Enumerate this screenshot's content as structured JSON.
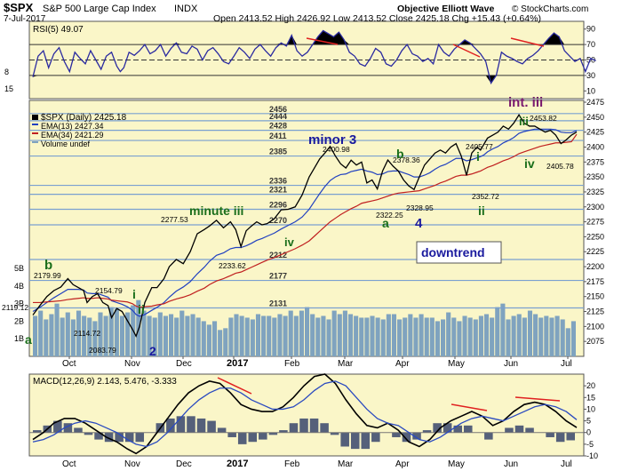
{
  "header": {
    "symbol": "$SPX",
    "name": "S&P 500 Large Cap Index",
    "exchange": "INDX",
    "date": "7-Jul-2017",
    "ohlc": "Open 2413.52  High 2426.92  Low 2413.52  Close 2425.18  Chg +15.43 (+0.64%)",
    "source": "Objective Elliott Wave",
    "copyright": "© StockCharts.com"
  },
  "colors": {
    "panel_bg": "#faf6c8",
    "rsi_fill": "#000000",
    "price_line": "#000000",
    "ema13": "#2040c0",
    "ema34": "#c02020",
    "volume": "#7fa3bf",
    "level_line": "#7aa0d0",
    "wave_green": "#1a6e1a",
    "wave_blue": "#1a1a9e",
    "wave_purple": "#7a1a6e",
    "divergence": "#e02020"
  },
  "chart_data": [
    {
      "type": "line",
      "panel": "rsi",
      "title": "RSI(5) 49.07",
      "ylim": [
        0,
        100
      ],
      "y_ticks": [
        10,
        30,
        50,
        70,
        90
      ],
      "levels": [
        30,
        70
      ],
      "x": [
        0,
        6,
        12,
        18,
        24,
        30,
        36,
        42,
        48,
        54,
        60,
        66,
        72,
        78,
        84,
        90,
        96,
        100,
        104,
        110,
        116,
        122,
        128,
        134,
        140,
        146,
        152,
        158,
        164,
        170,
        176,
        182,
        188,
        194,
        200,
        206,
        212,
        218,
        224,
        230,
        236,
        242,
        248,
        254,
        260,
        266,
        272,
        278,
        284,
        290,
        296,
        302,
        308,
        314,
        320,
        326,
        332,
        338,
        344,
        350,
        356,
        362,
        368,
        374,
        380,
        386,
        392,
        398,
        404,
        410,
        416,
        422,
        428,
        434,
        440,
        446,
        452,
        458,
        464,
        470,
        476,
        482,
        488,
        494,
        500,
        506,
        512,
        518,
        524,
        530,
        536,
        542,
        548,
        554,
        560,
        566,
        572,
        578,
        584,
        590,
        596,
        602,
        608,
        614,
        620,
        626,
        632,
        638,
        644
      ],
      "values": [
        28,
        55,
        62,
        40,
        58,
        66,
        48,
        35,
        60,
        52,
        45,
        62,
        50,
        38,
        55,
        60,
        42,
        35,
        40,
        60,
        56,
        62,
        70,
        58,
        62,
        70,
        55,
        65,
        72,
        60,
        58,
        68,
        64,
        50,
        62,
        66,
        58,
        48,
        45,
        55,
        66,
        60,
        52,
        64,
        70,
        62,
        55,
        66,
        72,
        68,
        82,
        62,
        55,
        60,
        70,
        80,
        88,
        84,
        80,
        86,
        76,
        60,
        55,
        45,
        42,
        52,
        65,
        60,
        45,
        42,
        50,
        62,
        70,
        58,
        55,
        48,
        52,
        45,
        70,
        60,
        55,
        64,
        70,
        76,
        72,
        65,
        58,
        48,
        20,
        30,
        60,
        55,
        52,
        48,
        45,
        52,
        56,
        62,
        70,
        78,
        85,
        80,
        62,
        55,
        48,
        52,
        35,
        52,
        49.07
      ],
      "annotations": [
        "15",
        "8"
      ]
    },
    {
      "type": "line",
      "panel": "price",
      "title": "$SPX (Daily) 2425.18",
      "ylim": [
        2050,
        2478
      ],
      "y_ticks": [
        2075,
        2100,
        2125,
        2150,
        2175,
        2200,
        2225,
        2250,
        2275,
        2300,
        2325,
        2350,
        2375,
        2400,
        2425,
        2450,
        2475
      ],
      "x_ticks": [
        "Oct",
        "Nov",
        "Dec",
        "2017",
        "Feb",
        "Mar",
        "Apr",
        "May",
        "Jun",
        "Jul"
      ],
      "x": [
        0,
        8,
        16,
        24,
        32,
        40,
        46,
        52,
        58,
        62,
        68,
        74,
        80,
        86,
        90,
        96,
        102,
        108,
        114,
        118,
        122,
        128,
        136,
        142,
        150,
        156,
        164,
        172,
        180,
        188,
        196,
        202,
        210,
        218,
        226,
        232,
        238,
        244,
        250,
        256,
        262,
        268,
        276,
        284,
        292,
        300,
        308,
        316,
        322,
        328,
        334,
        340,
        346,
        352,
        358,
        364,
        370,
        376,
        382,
        388,
        394,
        400,
        406,
        412,
        418,
        424,
        430,
        436,
        442,
        448,
        454,
        460,
        466,
        472,
        478,
        484,
        490,
        496,
        502,
        508,
        512,
        516,
        520,
        526,
        532,
        538,
        544,
        550,
        556,
        562,
        568,
        574,
        580,
        586,
        592,
        598,
        604,
        610,
        616,
        622
      ],
      "values": [
        2119.12,
        2135,
        2150,
        2160,
        2166,
        2179.99,
        2170,
        2165,
        2160,
        2140,
        2150,
        2154.79,
        2140,
        2135,
        2114.72,
        2130,
        2125,
        2110,
        2095,
        2083.79,
        2100,
        2140,
        2165,
        2165,
        2180,
        2200,
        2212,
        2205,
        2225,
        2255,
        2262,
        2268,
        2277.53,
        2265,
        2275,
        2262,
        2233.62,
        2260,
        2268,
        2275,
        2270,
        2272,
        2280,
        2295,
        2296,
        2300,
        2320,
        2350,
        2365,
        2380,
        2390,
        2400.98,
        2385,
        2372,
        2365,
        2378,
        2370,
        2375,
        2340,
        2345,
        2330,
        2360,
        2378.36,
        2368,
        2360,
        2345,
        2335,
        2328.95,
        2350,
        2370,
        2380,
        2390,
        2395,
        2390,
        2400,
        2405.77,
        2385,
        2352.72,
        2390,
        2400,
        2395,
        2405,
        2415,
        2420,
        2425,
        2435,
        2430,
        2440,
        2453.82,
        2440,
        2435,
        2435,
        2430,
        2425,
        2428,
        2420,
        2405.78,
        2412,
        2420,
        2425.18
      ],
      "series": [
        {
          "name": "EMA(13) 2427.34",
          "values": [
            2125,
            2132,
            2140,
            2148,
            2155,
            2162,
            2162,
            2162,
            2161,
            2156,
            2155,
            2155,
            2152,
            2149,
            2143,
            2140,
            2137,
            2133,
            2127,
            2120,
            2117,
            2120,
            2127,
            2132,
            2140,
            2149,
            2159,
            2166,
            2175,
            2188,
            2199,
            2209,
            2219,
            2223,
            2230,
            2232,
            2232,
            2235,
            2239,
            2244,
            2247,
            2251,
            2256,
            2263,
            2269,
            2275,
            2283,
            2296,
            2309,
            2322,
            2334,
            2344,
            2350,
            2354,
            2355,
            2359,
            2361,
            2363,
            2360,
            2358,
            2354,
            2355,
            2359,
            2360,
            2360,
            2357,
            2354,
            2350,
            2350,
            2353,
            2357,
            2363,
            2368,
            2371,
            2376,
            2381,
            2381,
            2377,
            2379,
            2382,
            2384,
            2387,
            2392,
            2397,
            2401,
            2407,
            2411,
            2416,
            2423,
            2426,
            2428,
            2430,
            2430,
            2430,
            2430,
            2429,
            2425,
            2424,
            2424,
            2427.34
          ]
        },
        {
          "name": "EMA(34) 2421.29",
          "values": [
            2140,
            2140,
            2141,
            2142,
            2143,
            2145,
            2146,
            2147,
            2148,
            2147,
            2147,
            2148,
            2147,
            2146,
            2144,
            2143,
            2142,
            2141,
            2138,
            2134,
            2132,
            2133,
            2134,
            2136,
            2138,
            2142,
            2146,
            2149,
            2153,
            2159,
            2164,
            2170,
            2176,
            2180,
            2185,
            2189,
            2191,
            2195,
            2199,
            2203,
            2207,
            2211,
            2215,
            2220,
            2225,
            2230,
            2236,
            2243,
            2251,
            2259,
            2267,
            2275,
            2281,
            2287,
            2292,
            2297,
            2301,
            2306,
            2308,
            2310,
            2312,
            2315,
            2318,
            2321,
            2323,
            2324,
            2325,
            2326,
            2327,
            2330,
            2333,
            2336,
            2340,
            2343,
            2347,
            2351,
            2353,
            2353,
            2355,
            2358,
            2360,
            2363,
            2366,
            2369,
            2373,
            2377,
            2380,
            2384,
            2389,
            2392,
            2395,
            2398,
            2401,
            2403,
            2405,
            2407,
            2407,
            2408,
            2409,
            2421.29
          ]
        }
      ],
      "price_labels": [
        "2119.12",
        "2179.99",
        "2154.79",
        "2114.72",
        "2083.79",
        "2277.53",
        "2233.62",
        "2400.98",
        "2322.25",
        "2378.36",
        "2328.95",
        "2405.77",
        "2352.72",
        "2453.82",
        "2405.78"
      ],
      "levels": [
        2456,
        2444,
        2428,
        2411,
        2385,
        2336,
        2321,
        2296,
        2270,
        2212,
        2177,
        2131
      ],
      "level_labels": [
        "2456",
        "2444",
        "2428",
        "2411",
        "2385",
        "2336",
        "2321",
        "2296",
        "2270",
        "2212",
        "2177",
        "2131"
      ],
      "wave_labels": [
        {
          "text": "b",
          "color": "green"
        },
        {
          "text": "i",
          "color": "green"
        },
        {
          "text": "ii",
          "color": "green"
        },
        {
          "text": "a",
          "color": "green"
        },
        {
          "text": "2",
          "color": "blue"
        },
        {
          "text": "minute iii",
          "color": "green"
        },
        {
          "text": "iv",
          "color": "green"
        },
        {
          "text": "minor 3",
          "color": "blue"
        },
        {
          "text": "b",
          "color": "green"
        },
        {
          "text": "a",
          "color": "green"
        },
        {
          "text": "4",
          "color": "blue"
        },
        {
          "text": "i",
          "color": "green"
        },
        {
          "text": "ii",
          "color": "green"
        },
        {
          "text": "int. iii",
          "color": "purple"
        },
        {
          "text": "iii",
          "color": "green"
        },
        {
          "text": "iv",
          "color": "green"
        }
      ],
      "box_label": "downtrend",
      "legend": [
        "$SPX (Daily) 2425.18",
        "EMA(13) 2427.34",
        "EMA(34) 2421.29",
        "Volume undef"
      ],
      "volume_ticks": [
        "5B",
        "4B",
        "3B",
        "2B",
        "1B"
      ],
      "volume": [
        2.3,
        2.6,
        2.1,
        2.4,
        3.0,
        2.2,
        2.5,
        2.1,
        2.6,
        2.3,
        2.2,
        2.0,
        2.5,
        2.3,
        2.8,
        2.7,
        2.3,
        2.5,
        2.9,
        3.2,
        2.6,
        2.3,
        2.2,
        2.5,
        2.3,
        2.4,
        2.2,
        2.6,
        2.3,
        2.4,
        2.2,
        2.0,
        1.8,
        2.0,
        1.5,
        1.6,
        2.2,
        2.4,
        2.3,
        2.2,
        2.1,
        2.4,
        2.3,
        2.3,
        2.2,
        2.4,
        2.3,
        2.6,
        2.3,
        2.6,
        2.8,
        2.4,
        2.2,
        2.3,
        2.1,
        2.6,
        2.4,
        2.6,
        2.4,
        2.3,
        2.2,
        2.2,
        2.3,
        2.2,
        2.1,
        2.4,
        2.4,
        2.1,
        2.2,
        2.4,
        2.2,
        2.4,
        2.2,
        2.2,
        2.0,
        2.1,
        2.5,
        2.2,
        2.0,
        2.3,
        2.2,
        2.1,
        2.3,
        2.4,
        2.2,
        2.8,
        3.0,
        2.1,
        2.3,
        2.4,
        2.2,
        2.6,
        2.4,
        2.2,
        2.3,
        2.2,
        2.3,
        2.1,
        1.6,
        2.0
      ]
    },
    {
      "type": "line",
      "panel": "macd",
      "title": "MACD(12,26,9) 2.143, 5.476, -3.333",
      "ylim": [
        -10,
        25
      ],
      "y_ticks": [
        -10,
        -5,
        0,
        5,
        10,
        15,
        20
      ],
      "x_ticks": [
        "Oct",
        "Nov",
        "Dec",
        "2017",
        "Feb",
        "Mar",
        "Apr",
        "May",
        "Jun",
        "Jul"
      ],
      "x": [
        0,
        12,
        24,
        36,
        48,
        60,
        72,
        84,
        96,
        108,
        118,
        130,
        142,
        154,
        166,
        178,
        190,
        202,
        214,
        226,
        238,
        250,
        262,
        274,
        286,
        298,
        310,
        322,
        334,
        346,
        358,
        370,
        382,
        394,
        406,
        418,
        430,
        442,
        454,
        466,
        478,
        490,
        502,
        514,
        526,
        538,
        550,
        562,
        574,
        586,
        598,
        610,
        622
      ],
      "series": [
        {
          "name": "MACD",
          "values": [
            -3,
            0,
            4,
            6,
            6,
            4,
            1,
            -2,
            -4,
            -7,
            -9,
            -6,
            0,
            6,
            12,
            17,
            20,
            22,
            21,
            17,
            12,
            10,
            9,
            9,
            11,
            15,
            20,
            24,
            25,
            21,
            14,
            8,
            3,
            2,
            4,
            1,
            -4,
            -6,
            -3,
            2,
            5,
            7,
            9,
            7,
            3,
            5,
            9,
            12,
            13,
            12,
            9,
            5,
            2.143
          ]
        },
        {
          "name": "Signal",
          "values": [
            -4,
            -3,
            -1,
            2,
            4,
            5,
            4,
            2,
            0,
            -3,
            -5,
            -6,
            -4,
            0,
            5,
            10,
            14,
            17,
            19,
            19,
            17,
            14,
            12,
            10,
            10,
            11,
            14,
            18,
            21,
            22,
            20,
            15,
            10,
            6,
            4,
            3,
            0,
            -3,
            -4,
            -2,
            1,
            4,
            6,
            7,
            6,
            5,
            7,
            9,
            11,
            12,
            11,
            9,
            5.476
          ]
        }
      ],
      "histogram": [
        1,
        3,
        5,
        4,
        2,
        -1,
        -3,
        -4,
        -4,
        -4,
        -4,
        0,
        4,
        6,
        7,
        7,
        6,
        5,
        2,
        -2,
        -5,
        -4,
        -3,
        -1,
        1,
        4,
        6,
        6,
        4,
        -1,
        -6,
        -7,
        -7,
        -4,
        0,
        -2,
        -4,
        -3,
        1,
        4,
        4,
        3,
        3,
        0,
        -3,
        0,
        2,
        3,
        2,
        0,
        -2,
        -4,
        -3.333
      ]
    }
  ]
}
